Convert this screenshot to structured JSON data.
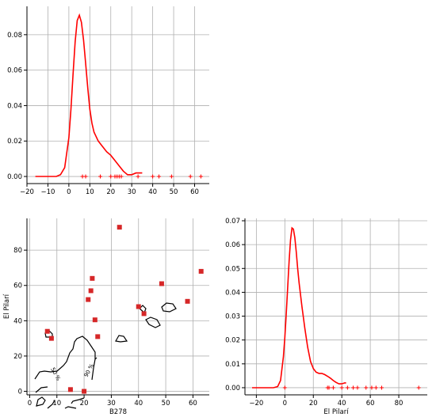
{
  "chart_data": [
    {
      "type": "line",
      "panel": "top-left",
      "title": "",
      "xlabel": "",
      "ylabel": "",
      "xlim": [
        -20,
        67
      ],
      "ylim": [
        -0.004,
        0.096
      ],
      "xticks": [
        "−20",
        "−10",
        "0",
        "10",
        "20",
        "30",
        "40",
        "50",
        "60"
      ],
      "yticks": [
        "0.00",
        "0.02",
        "0.04",
        "0.06",
        "0.08"
      ],
      "grid": true,
      "series": [
        {
          "kind": "kde-curve",
          "color": "#ff0000",
          "x": [
            -16,
            -10,
            -6,
            -4,
            -2,
            0,
            1,
            2,
            3,
            4,
            5,
            6,
            7,
            8,
            9,
            10,
            11,
            12,
            14,
            16,
            18,
            20,
            22,
            24,
            26,
            28,
            30,
            32,
            34,
            35
          ],
          "y": [
            0.0,
            0.0,
            0.0,
            0.001,
            0.005,
            0.022,
            0.038,
            0.058,
            0.076,
            0.088,
            0.091,
            0.087,
            0.077,
            0.064,
            0.05,
            0.038,
            0.03,
            0.025,
            0.02,
            0.017,
            0.014,
            0.012,
            0.009,
            0.006,
            0.003,
            0.001,
            0.001,
            0.002,
            0.002,
            0.002
          ]
        },
        {
          "kind": "rug",
          "color": "#ff0000",
          "x": [
            6.5,
            8,
            15,
            20,
            22,
            23,
            24,
            25,
            33,
            40,
            43,
            49,
            58,
            63
          ],
          "y": [
            0,
            0,
            0,
            0,
            0,
            0,
            0,
            0,
            0,
            0,
            0,
            0,
            0,
            0
          ]
        }
      ]
    },
    {
      "type": "scatter",
      "panel": "bottom-left",
      "title": "",
      "xlabel": "B278",
      "ylabel": "El Pilarí",
      "xlim": [
        -1,
        66
      ],
      "ylim": [
        -2,
        98
      ],
      "xticks": [
        "0",
        "10",
        "20",
        "30",
        "40",
        "50",
        "60"
      ],
      "yticks": [
        "0",
        "20",
        "40",
        "60",
        "80"
      ],
      "grid": true,
      "series": [
        {
          "kind": "points",
          "color": "#d62728",
          "x": [
            6.5,
            8,
            15,
            20,
            21.5,
            22.5,
            23,
            24,
            25,
            33,
            40,
            42,
            48.5,
            58,
            63
          ],
          "y": [
            34,
            30,
            1,
            0,
            52,
            57,
            64,
            40.5,
            31,
            93,
            48,
            44,
            61,
            51,
            68
          ]
        }
      ],
      "contour_labels": [
        "50 %",
        "90 %"
      ]
    },
    {
      "type": "line",
      "panel": "bottom-right",
      "title": "",
      "xlabel": "El Pilarí",
      "ylabel": "",
      "xlim": [
        -28,
        100
      ],
      "ylim": [
        -0.003,
        0.071
      ],
      "xticks": [
        "−20",
        "0",
        "20",
        "40",
        "60",
        "80"
      ],
      "yticks": [
        "0.00",
        "0.01",
        "0.02",
        "0.03",
        "0.04",
        "0.05",
        "0.06",
        "0.07"
      ],
      "grid": true,
      "series": [
        {
          "kind": "kde-curve",
          "color": "#ff0000",
          "x": [
            -23,
            -15,
            -8,
            -5,
            -3,
            -1,
            0,
            1,
            2,
            3,
            4,
            5,
            6,
            7,
            8,
            9,
            10,
            12,
            14,
            16,
            18,
            20,
            22,
            24,
            26,
            28,
            30,
            32,
            34,
            36,
            38,
            40,
            42,
            43
          ],
          "y": [
            0.0,
            0.0,
            0.0,
            0.0005,
            0.003,
            0.013,
            0.021,
            0.031,
            0.042,
            0.053,
            0.062,
            0.067,
            0.0665,
            0.063,
            0.057,
            0.05,
            0.044,
            0.034,
            0.025,
            0.017,
            0.011,
            0.008,
            0.0065,
            0.006,
            0.006,
            0.0055,
            0.0048,
            0.004,
            0.003,
            0.0022,
            0.0016,
            0.0016,
            0.002,
            0.002
          ]
        },
        {
          "kind": "rug",
          "color": "#ff0000",
          "x": [
            0,
            30,
            31,
            34,
            40,
            44,
            48,
            51,
            57,
            61,
            64,
            68,
            94
          ],
          "y": [
            0,
            0,
            0,
            0,
            0,
            0,
            0,
            0,
            0,
            0,
            0,
            0,
            0
          ]
        }
      ]
    }
  ]
}
